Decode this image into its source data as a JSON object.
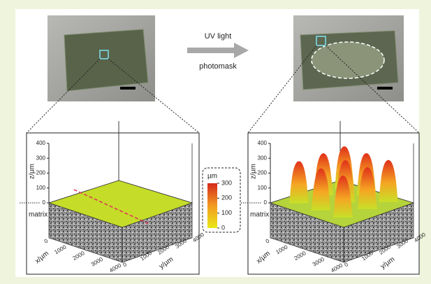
{
  "arrow": {
    "top": "UV light",
    "bottom": "photomask"
  },
  "panels": [
    {
      "z_label": "z/µm",
      "z_ticks": [
        0,
        100,
        200,
        300,
        400
      ],
      "x_label": "x/µm",
      "x_ticks": [
        0,
        1000,
        2000,
        3000,
        4000
      ],
      "y_label": "y/µm",
      "y_ticks": [
        0,
        1000,
        2000,
        3000,
        4000
      ],
      "matrix_label": "matrix"
    },
    {
      "z_label": "z/µm",
      "z_ticks": [
        0,
        100,
        200,
        300,
        400
      ],
      "x_label": "x/µm",
      "x_ticks": [
        0,
        1000,
        2000,
        3000,
        4000
      ],
      "y_label": "y/µm",
      "y_ticks": [
        0,
        1000,
        2000,
        3000,
        4000
      ],
      "matrix_label": "matrix"
    }
  ],
  "colorbar": {
    "unit": "µm",
    "ticks": [
      0,
      100,
      200,
      300
    ]
  }
}
